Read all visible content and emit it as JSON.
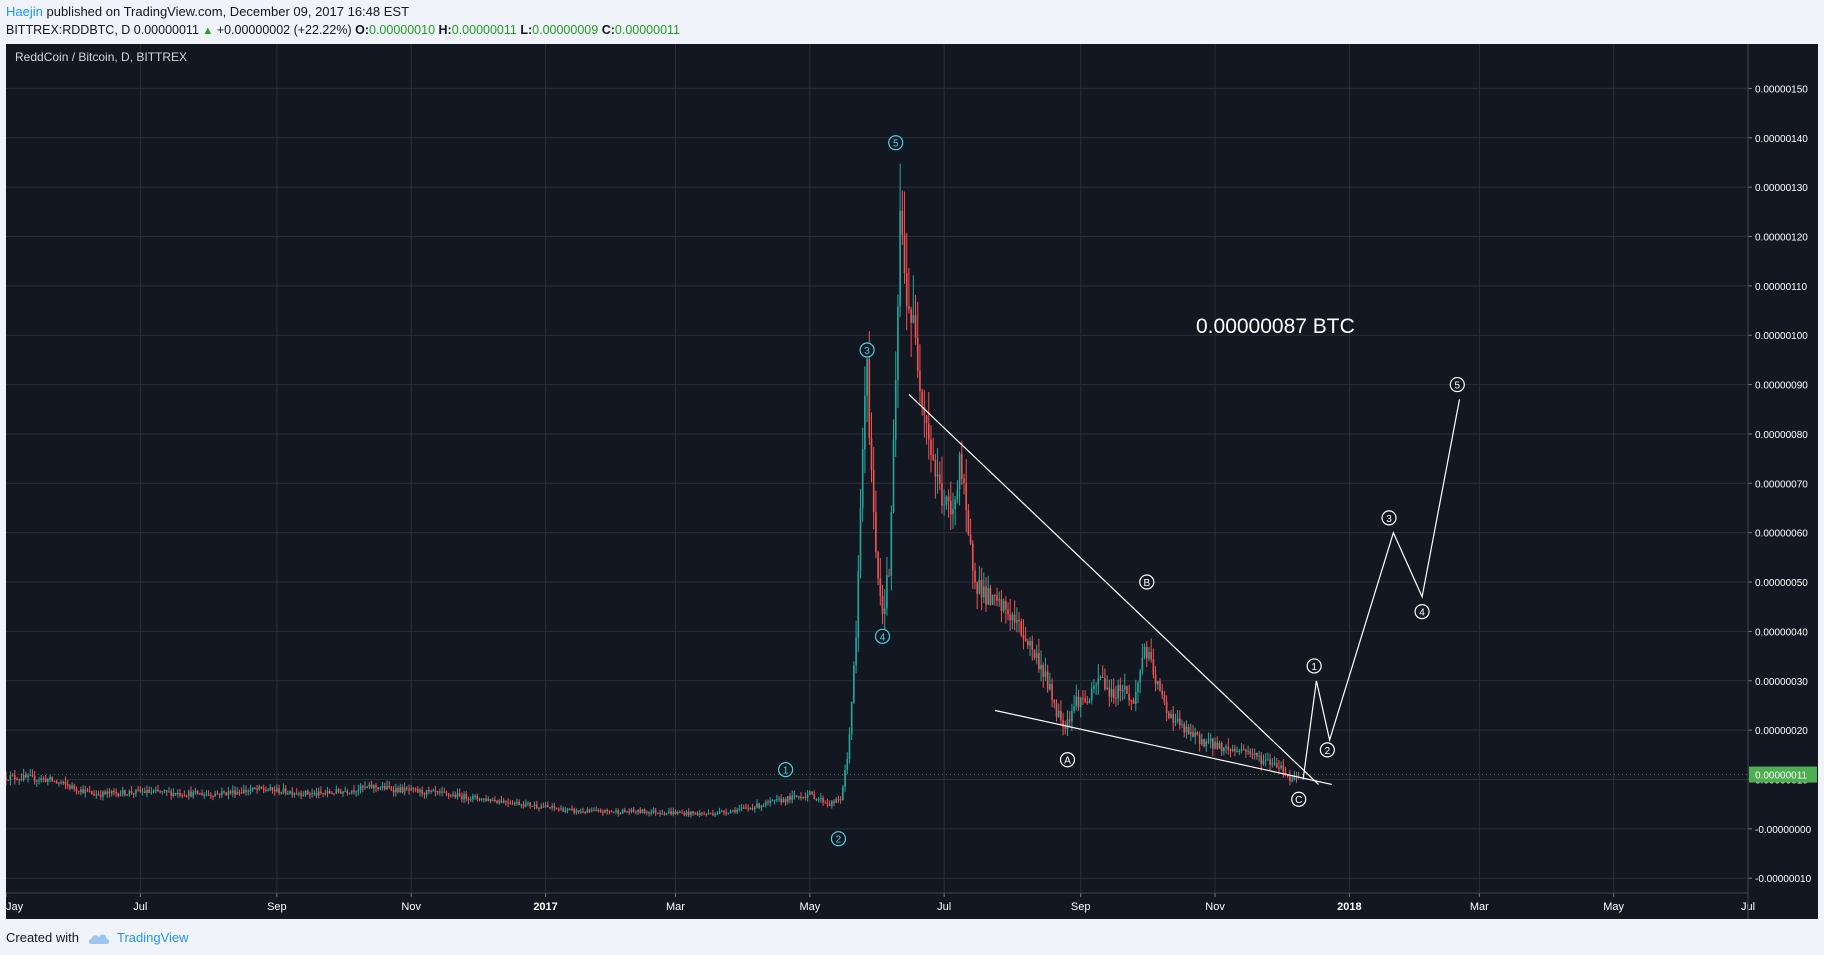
{
  "header": {
    "author": "Haejin",
    "published_text": "published on TradingView.com, December 09, 2017 16:48 EST"
  },
  "symbol_bar": {
    "symbol": "BITTREX:RDDBTC, D",
    "last": "0.00000011",
    "change_icon": "up-triangle-icon",
    "change": "+0.00000002 (+22.22%)",
    "o_label": "O:",
    "o": "0.00000010",
    "h_label": "H:",
    "h": "0.00000011",
    "l_label": "L:",
    "l": "0.00000009",
    "c_label": "C:",
    "c": "0.00000011"
  },
  "footer": {
    "created_with": "Created with",
    "brand": "TradingView",
    "brand_icon": "tradingview-cloud-icon"
  },
  "colors": {
    "background": "#131722",
    "grid": "#2a2e39",
    "up": "#26a69a",
    "down": "#ef5350",
    "wave_cyan": "#4dd0e1",
    "drawing": "#ffffff",
    "price_tag": "#4caf50",
    "axis_text": "#ffffff"
  },
  "chart_data": {
    "type": "candlestick",
    "title": "ReddCoin / Bitcoin, D, BITTREX",
    "x_tick_labels": [
      "Jay",
      "Jul",
      "Sep",
      "Nov",
      "2017",
      "Mar",
      "May",
      "Jul",
      "Sep",
      "Nov",
      "2018",
      "Mar",
      "May",
      "Jul"
    ],
    "y_tick_labels": [
      "0.00000150",
      "0.00000140",
      "0.00000130",
      "0.00000120",
      "0.00000110",
      "0.00000100",
      "0.00000090",
      "0.00000080",
      "0.00000070",
      "0.00000060",
      "0.00000050",
      "0.00000040",
      "0.00000030",
      "0.00000020",
      "0.00000010",
      "-0.00000000",
      "-0.00000010"
    ],
    "y_values": [
      150,
      140,
      130,
      120,
      110,
      100,
      90,
      80,
      70,
      60,
      50,
      40,
      30,
      20,
      10,
      0,
      -10
    ],
    "y_unit": "1e-8 BTC",
    "ylim": [
      -13,
      159
    ],
    "current_price_tag": "0.00000011",
    "current_price_value": 11,
    "annotation_text": "0.00000087 BTC",
    "price_path": [
      {
        "d": "2016-05-01",
        "v": 10.5
      },
      {
        "d": "2016-05-20",
        "v": 10
      },
      {
        "d": "2016-06-10",
        "v": 7
      },
      {
        "d": "2016-07-01",
        "v": 7.5
      },
      {
        "d": "2016-08-01",
        "v": 7
      },
      {
        "d": "2016-08-25",
        "v": 8
      },
      {
        "d": "2016-09-20",
        "v": 7
      },
      {
        "d": "2016-10-15",
        "v": 8.5
      },
      {
        "d": "2016-11-15",
        "v": 7
      },
      {
        "d": "2016-12-15",
        "v": 5.5
      },
      {
        "d": "2017-01-15",
        "v": 3.5
      },
      {
        "d": "2017-02-15",
        "v": 3.5
      },
      {
        "d": "2017-03-15",
        "v": 3
      },
      {
        "d": "2017-04-01",
        "v": 4
      },
      {
        "d": "2017-04-20",
        "v": 6
      },
      {
        "d": "2017-05-01",
        "v": 7
      },
      {
        "d": "2017-05-10",
        "v": 5
      },
      {
        "d": "2017-05-15",
        "v": 6
      },
      {
        "d": "2017-05-18",
        "v": 14
      },
      {
        "d": "2017-05-22",
        "v": 38
      },
      {
        "d": "2017-05-25",
        "v": 78
      },
      {
        "d": "2017-05-27",
        "v": 92
      },
      {
        "d": "2017-05-30",
        "v": 63
      },
      {
        "d": "2017-06-01",
        "v": 52
      },
      {
        "d": "2017-06-03",
        "v": 44
      },
      {
        "d": "2017-06-06",
        "v": 52
      },
      {
        "d": "2017-06-09",
        "v": 88
      },
      {
        "d": "2017-06-11",
        "v": 124
      },
      {
        "d": "2017-06-13",
        "v": 112
      },
      {
        "d": "2017-06-16",
        "v": 104
      },
      {
        "d": "2017-06-20",
        "v": 92
      },
      {
        "d": "2017-06-24",
        "v": 80
      },
      {
        "d": "2017-06-27",
        "v": 72
      },
      {
        "d": "2017-07-01",
        "v": 66
      },
      {
        "d": "2017-07-05",
        "v": 63
      },
      {
        "d": "2017-07-08",
        "v": 76
      },
      {
        "d": "2017-07-12",
        "v": 58
      },
      {
        "d": "2017-07-16",
        "v": 50
      },
      {
        "d": "2017-07-22",
        "v": 46
      },
      {
        "d": "2017-07-30",
        "v": 44
      },
      {
        "d": "2017-08-08",
        "v": 38
      },
      {
        "d": "2017-08-15",
        "v": 32
      },
      {
        "d": "2017-08-21",
        "v": 24
      },
      {
        "d": "2017-08-25",
        "v": 21
      },
      {
        "d": "2017-08-30",
        "v": 26
      },
      {
        "d": "2017-09-05",
        "v": 26
      },
      {
        "d": "2017-09-10",
        "v": 31
      },
      {
        "d": "2017-09-15",
        "v": 27
      },
      {
        "d": "2017-09-20",
        "v": 29
      },
      {
        "d": "2017-09-25",
        "v": 25
      },
      {
        "d": "2017-09-30",
        "v": 37
      },
      {
        "d": "2017-10-05",
        "v": 30
      },
      {
        "d": "2017-10-10",
        "v": 24
      },
      {
        "d": "2017-10-18",
        "v": 20
      },
      {
        "d": "2017-10-25",
        "v": 18
      },
      {
        "d": "2017-11-01",
        "v": 17
      },
      {
        "d": "2017-11-08",
        "v": 16
      },
      {
        "d": "2017-11-15",
        "v": 16
      },
      {
        "d": "2017-11-22",
        "v": 14
      },
      {
        "d": "2017-11-30",
        "v": 13
      },
      {
        "d": "2017-12-05",
        "v": 10
      },
      {
        "d": "2017-12-09",
        "v": 11
      }
    ],
    "wave_labels_cyan": [
      {
        "label": "1",
        "d": "2017-04-20",
        "v": 12
      },
      {
        "label": "2",
        "d": "2017-05-14",
        "v": -2
      },
      {
        "label": "3",
        "d": "2017-05-27",
        "v": 97
      },
      {
        "label": "4",
        "d": "2017-06-03",
        "v": 39
      },
      {
        "label": "5",
        "d": "2017-06-09",
        "v": 139
      }
    ],
    "wave_labels_white": [
      {
        "label": "A",
        "d": "2017-08-26",
        "v": 14
      },
      {
        "label": "B",
        "d": "2017-10-01",
        "v": 50
      },
      {
        "label": "C",
        "d": "2017-12-09",
        "v": 6
      },
      {
        "label": "1",
        "d": "2017-12-16",
        "v": 33
      },
      {
        "label": "2",
        "d": "2017-12-22",
        "v": 16
      },
      {
        "label": "3",
        "d": "2018-01-19",
        "v": 63
      },
      {
        "label": "4",
        "d": "2018-02-03",
        "v": 44
      },
      {
        "label": "5",
        "d": "2018-02-19",
        "v": 90
      }
    ],
    "trendlines": [
      {
        "from": {
          "d": "2017-06-15",
          "v": 88
        },
        "to": {
          "d": "2017-12-18",
          "v": 9
        }
      },
      {
        "from": {
          "d": "2017-07-24",
          "v": 24
        },
        "to": {
          "d": "2017-12-24",
          "v": 9
        }
      }
    ],
    "projection_path": [
      {
        "d": "2017-12-11",
        "v": 10
      },
      {
        "d": "2017-12-17",
        "v": 30
      },
      {
        "d": "2017-12-23",
        "v": 18
      },
      {
        "d": "2018-01-21",
        "v": 60
      },
      {
        "d": "2018-02-03",
        "v": 47
      },
      {
        "d": "2018-02-20",
        "v": 87
      }
    ],
    "grid": true
  }
}
